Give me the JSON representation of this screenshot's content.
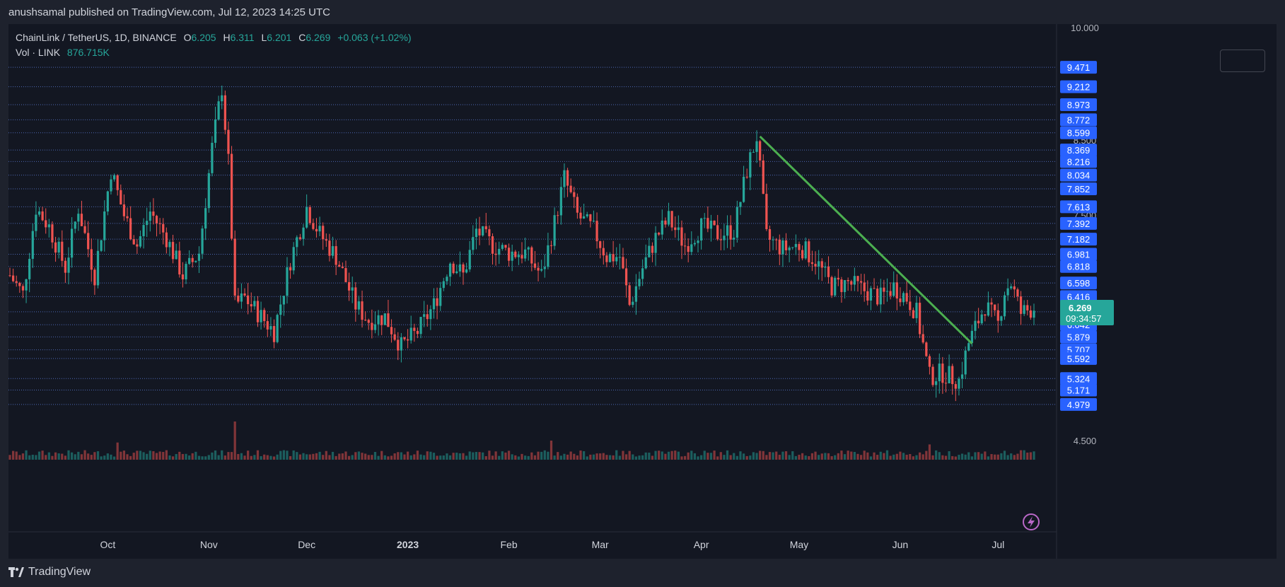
{
  "header": {
    "published_by": "anushsamal published on TradingView.com, Jul 12, 2023 14:25 UTC"
  },
  "legend": {
    "symbol": "ChainLink / TetherUS, 1D, BINANCE",
    "o_label": "O",
    "o_value": "6.205",
    "h_label": "H",
    "h_value": "6.311",
    "l_label": "L",
    "l_value": "6.201",
    "c_label": "C",
    "c_value": "6.269",
    "change": "+0.063 (+1.02%)",
    "vol_label": "Vol · LINK",
    "vol_value": "876.715K"
  },
  "brand": {
    "name": "TradingView",
    "icon": "tradingview-logo-icon"
  },
  "colors": {
    "up": "#26a69a",
    "down": "#ef5350",
    "trendline": "#4caf50",
    "background": "#131722",
    "grid": "#2a2e39",
    "level_line": "#5b7bd5",
    "label_bg": "#2962ff",
    "last_price_bg": "#26a69a"
  },
  "chart_data": {
    "type": "candlestick",
    "symbol": "LINKUSDT",
    "interval": "1D",
    "exchange": "BINANCE",
    "x_labels": [
      "Oct",
      "Nov",
      "Dec",
      "2023",
      "Feb",
      "Mar",
      "Apr",
      "May",
      "Jun",
      "Jul"
    ],
    "bold_x_label": "2023",
    "y_ticks": [
      "10.000",
      "8.500",
      "7.500",
      "4.500"
    ],
    "price_levels": [
      "9.471",
      "9.212",
      "8.973",
      "8.772",
      "8.599",
      "8.369",
      "8.216",
      "8.034",
      "7.852",
      "7.613",
      "7.392",
      "7.182",
      "6.981",
      "6.818",
      "6.598",
      "6.416",
      "6.214",
      "6.042",
      "5.879",
      "5.707",
      "5.592",
      "5.324",
      "5.171",
      "4.979"
    ],
    "last_price": "6.269",
    "countdown": "09:34:57",
    "ylim": [
      4.3,
      10.0
    ],
    "price_path": [
      {
        "date": "2022-09-01",
        "close": 6.7
      },
      {
        "date": "2022-09-05",
        "close": 6.45
      },
      {
        "date": "2022-09-09",
        "close": 7.6
      },
      {
        "date": "2022-09-13",
        "close": 7.35
      },
      {
        "date": "2022-09-18",
        "close": 6.8
      },
      {
        "date": "2022-09-22",
        "close": 7.6
      },
      {
        "date": "2022-09-27",
        "close": 6.7
      },
      {
        "date": "2022-10-02",
        "close": 8.1
      },
      {
        "date": "2022-10-06",
        "close": 7.5
      },
      {
        "date": "2022-10-10",
        "close": 7.1
      },
      {
        "date": "2022-10-14",
        "close": 7.55
      },
      {
        "date": "2022-10-19",
        "close": 7.2
      },
      {
        "date": "2022-10-24",
        "close": 6.7
      },
      {
        "date": "2022-10-29",
        "close": 7.0
      },
      {
        "date": "2022-11-02",
        "close": 8.4
      },
      {
        "date": "2022-11-05",
        "close": 9.2
      },
      {
        "date": "2022-11-07",
        "close": 8.2
      },
      {
        "date": "2022-11-09",
        "close": 6.3
      },
      {
        "date": "2022-11-12",
        "close": 6.4
      },
      {
        "date": "2022-11-16",
        "close": 6.2
      },
      {
        "date": "2022-11-21",
        "close": 5.95
      },
      {
        "date": "2022-11-26",
        "close": 6.9
      },
      {
        "date": "2022-12-01",
        "close": 7.6
      },
      {
        "date": "2022-12-05",
        "close": 7.25
      },
      {
        "date": "2022-12-10",
        "close": 6.95
      },
      {
        "date": "2022-12-16",
        "close": 6.3
      },
      {
        "date": "2022-12-20",
        "close": 6.1
      },
      {
        "date": "2022-12-25",
        "close": 6.15
      },
      {
        "date": "2022-12-30",
        "close": 5.75
      },
      {
        "date": "2023-01-04",
        "close": 5.95
      },
      {
        "date": "2023-01-09",
        "close": 6.3
      },
      {
        "date": "2023-01-14",
        "close": 6.9
      },
      {
        "date": "2023-01-18",
        "close": 6.7
      },
      {
        "date": "2023-01-22",
        "close": 7.3
      },
      {
        "date": "2023-01-27",
        "close": 7.1
      },
      {
        "date": "2023-02-01",
        "close": 7.0
      },
      {
        "date": "2023-02-06",
        "close": 7.0
      },
      {
        "date": "2023-02-11",
        "close": 6.7
      },
      {
        "date": "2023-02-15",
        "close": 7.4
      },
      {
        "date": "2023-02-18",
        "close": 8.0
      },
      {
        "date": "2023-02-22",
        "close": 7.5
      },
      {
        "date": "2023-02-27",
        "close": 7.3
      },
      {
        "date": "2023-03-03",
        "close": 6.95
      },
      {
        "date": "2023-03-07",
        "close": 6.95
      },
      {
        "date": "2023-03-10",
        "close": 6.3
      },
      {
        "date": "2023-03-14",
        "close": 6.8
      },
      {
        "date": "2023-03-18",
        "close": 7.2
      },
      {
        "date": "2023-03-22",
        "close": 7.45
      },
      {
        "date": "2023-03-27",
        "close": 7.1
      },
      {
        "date": "2023-04-01",
        "close": 7.35
      },
      {
        "date": "2023-04-06",
        "close": 7.25
      },
      {
        "date": "2023-04-11",
        "close": 7.3
      },
      {
        "date": "2023-04-15",
        "close": 8.1
      },
      {
        "date": "2023-04-18",
        "close": 8.55
      },
      {
        "date": "2023-04-21",
        "close": 7.2
      },
      {
        "date": "2023-04-26",
        "close": 7.05
      },
      {
        "date": "2023-05-01",
        "close": 7.1
      },
      {
        "date": "2023-05-06",
        "close": 6.9
      },
      {
        "date": "2023-05-11",
        "close": 6.55
      },
      {
        "date": "2023-05-16",
        "close": 6.6
      },
      {
        "date": "2023-05-21",
        "close": 6.5
      },
      {
        "date": "2023-05-26",
        "close": 6.4
      },
      {
        "date": "2023-05-30",
        "close": 6.55
      },
      {
        "date": "2023-06-03",
        "close": 6.4
      },
      {
        "date": "2023-06-06",
        "close": 6.2
      },
      {
        "date": "2023-06-10",
        "close": 5.35
      },
      {
        "date": "2023-06-14",
        "close": 5.4
      },
      {
        "date": "2023-06-19",
        "close": 5.3
      },
      {
        "date": "2023-06-22",
        "close": 5.8
      },
      {
        "date": "2023-06-27",
        "close": 6.3
      },
      {
        "date": "2023-07-01",
        "close": 6.05
      },
      {
        "date": "2023-07-03",
        "close": 6.5
      },
      {
        "date": "2023-07-05",
        "close": 6.6
      },
      {
        "date": "2023-07-08",
        "close": 6.2
      },
      {
        "date": "2023-07-12",
        "close": 6.269
      }
    ],
    "volume_spikes": [
      {
        "date": "2022-11-09",
        "level": 1.0
      },
      {
        "date": "2023-06-10",
        "level": 0.4
      },
      {
        "date": "2023-02-14",
        "level": 0.5
      },
      {
        "date": "2022-10-04",
        "level": 0.45
      }
    ],
    "trendline": {
      "start": {
        "date": "2023-04-19",
        "price": 8.55
      },
      "end": {
        "date": "2023-06-23",
        "price": 5.79
      }
    }
  }
}
